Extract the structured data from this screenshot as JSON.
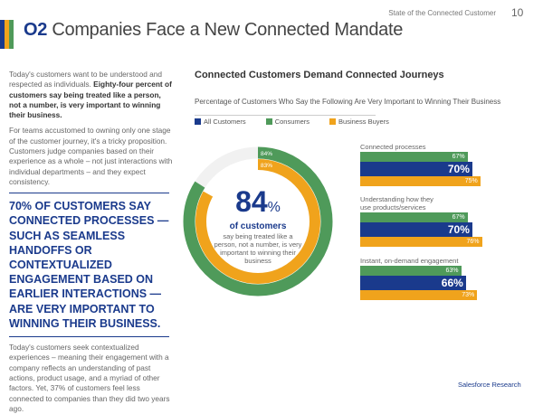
{
  "header": {
    "section_number": "O2",
    "title": "Companies Face a New Connected Mandate",
    "running_title": "State of the Connected Customer",
    "page_number": "10"
  },
  "left": {
    "p1_plain": "Today's customers want to be understood and respected as individuals. ",
    "p1_bold": "Eighty-four percent of customers say being treated like a person, not a number, is very important to winning their business.",
    "p2": "For teams accustomed to owning only one stage of the customer journey, it's a tricky proposition. Customers judge companies based on their experience as a whole – not just interactions with individual departments – and they expect consistency.",
    "callout": "70% of customers say connected processes — such as seamless handoffs or contextualized engagement based on earlier interactions — are very important to winning their business.",
    "p3": "Today's customers seek contextualized experiences – meaning their engagement with a company reflects an understanding of past actions, product usage, and a myriad of other factors. Yet, 37% of customers feel less connected to companies than they did two years ago."
  },
  "chart_data": {
    "type": "bar",
    "title": "Connected Customers Demand Connected Journeys",
    "subtitle": "Percentage of Customers Who Say the Following Are Very Important to Winning Their Business",
    "legend": [
      "All Customers",
      "Consumers",
      "Business Buyers"
    ],
    "colors": {
      "All Customers": "#1a3a8c",
      "Consumers": "#4f9a5a",
      "Business Buyers": "#f0a31c"
    },
    "donut": {
      "consumers": 84,
      "business_buyers": 83,
      "big_value": "84",
      "unit": "%",
      "label": "of customers",
      "caption": "say being treated like a person, not a number, is very important to winning their business"
    },
    "categories": [
      "Connected processes",
      "Understanding how they use products/services",
      "Instant, on-demand engagement"
    ],
    "series": [
      {
        "name": "Consumers",
        "values": [
          67,
          67,
          63
        ]
      },
      {
        "name": "All Customers",
        "values": [
          70,
          70,
          66
        ]
      },
      {
        "name": "Business Buyers",
        "values": [
          75,
          76,
          73
        ]
      }
    ]
  },
  "footer": {
    "source": "Salesforce Research"
  }
}
